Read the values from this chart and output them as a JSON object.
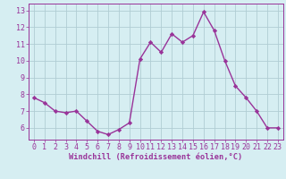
{
  "x": [
    0,
    1,
    2,
    3,
    4,
    5,
    6,
    7,
    8,
    9,
    10,
    11,
    12,
    13,
    14,
    15,
    16,
    17,
    18,
    19,
    20,
    21,
    22,
    23
  ],
  "y": [
    7.8,
    7.5,
    7.0,
    6.9,
    7.0,
    6.4,
    5.8,
    5.6,
    5.9,
    6.3,
    10.1,
    11.1,
    10.5,
    11.6,
    11.1,
    11.5,
    12.9,
    11.8,
    10.0,
    8.5,
    7.8,
    7.0,
    6.0,
    6.0
  ],
  "line_color": "#993399",
  "marker": "D",
  "marker_size": 2.2,
  "bg_color": "#d6eef2",
  "grid_color": "#b0cdd4",
  "xlabel": "Windchill (Refroidissement éolien,°C)",
  "xlabel_color": "#993399",
  "tick_color": "#993399",
  "ylim": [
    5.3,
    13.4
  ],
  "yticks": [
    6,
    7,
    8,
    9,
    10,
    11,
    12,
    13
  ],
  "xlim": [
    -0.5,
    23.5
  ],
  "line_width": 1.0,
  "tick_fontsize": 6.0,
  "xlabel_fontsize": 6.2
}
